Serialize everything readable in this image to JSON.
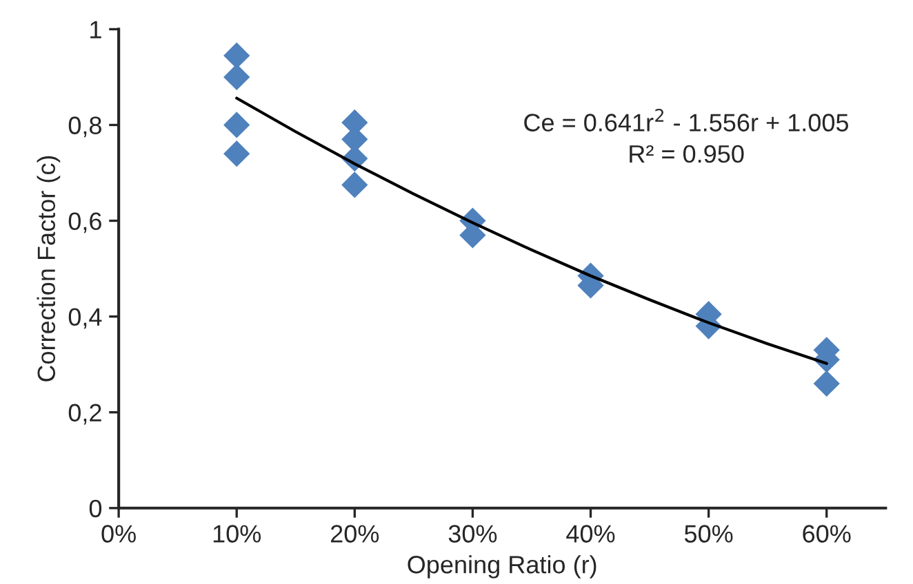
{
  "chart_data": {
    "type": "scatter",
    "xlabel": "Opening Ratio (r)",
    "ylabel": "Correction Factor (c)",
    "annotations": [
      "Ce = 0.641r$^{2}$ - 1.556r + 1.005",
      "R² = 0.950"
    ],
    "series": [
      {
        "color": "#4f81bd",
        "marker": "diamond",
        "x": [
          10,
          10,
          10,
          10,
          20,
          20,
          20,
          20,
          30,
          30,
          40,
          40,
          50,
          50,
          60,
          60,
          60
        ],
        "values": [
          0.945,
          0.9,
          0.8,
          0.74,
          0.805,
          0.77,
          0.73,
          0.675,
          0.6,
          0.57,
          0.485,
          0.465,
          0.405,
          0.38,
          0.33,
          0.31,
          0.26
        ]
      },
      {
        "type": "line",
        "color": "#000000",
        "marker": "none",
        "line_style": "solid",
        "x": [
          10,
          15,
          20,
          25,
          30,
          35,
          40,
          45,
          50,
          55,
          60
        ],
        "values": [
          0.856,
          0.786,
          0.719,
          0.656,
          0.596,
          0.539,
          0.485,
          0.435,
          0.387,
          0.343,
          0.302
        ]
      }
    ],
    "xlim": [
      0,
      65
    ],
    "xticks": [
      {
        "value": 0,
        "label": "0%"
      },
      {
        "value": 10,
        "label": "10%"
      },
      {
        "value": 20,
        "label": "20%"
      },
      {
        "value": 30,
        "label": "30%"
      },
      {
        "value": 40,
        "label": "40%"
      },
      {
        "value": 50,
        "label": "50%"
      },
      {
        "value": 60,
        "label": "60%"
      }
    ],
    "ylim": [
      0,
      1
    ],
    "yticks": [
      0,
      {
        "value": 0.2,
        "label": "0,2"
      },
      {
        "value": 0.4,
        "label": "0,4"
      },
      {
        "value": 0.6,
        "label": "0,6"
      },
      {
        "value": 0.8,
        "label": "0,8"
      },
      1
    ],
    "grid": false,
    "legend": false
  }
}
